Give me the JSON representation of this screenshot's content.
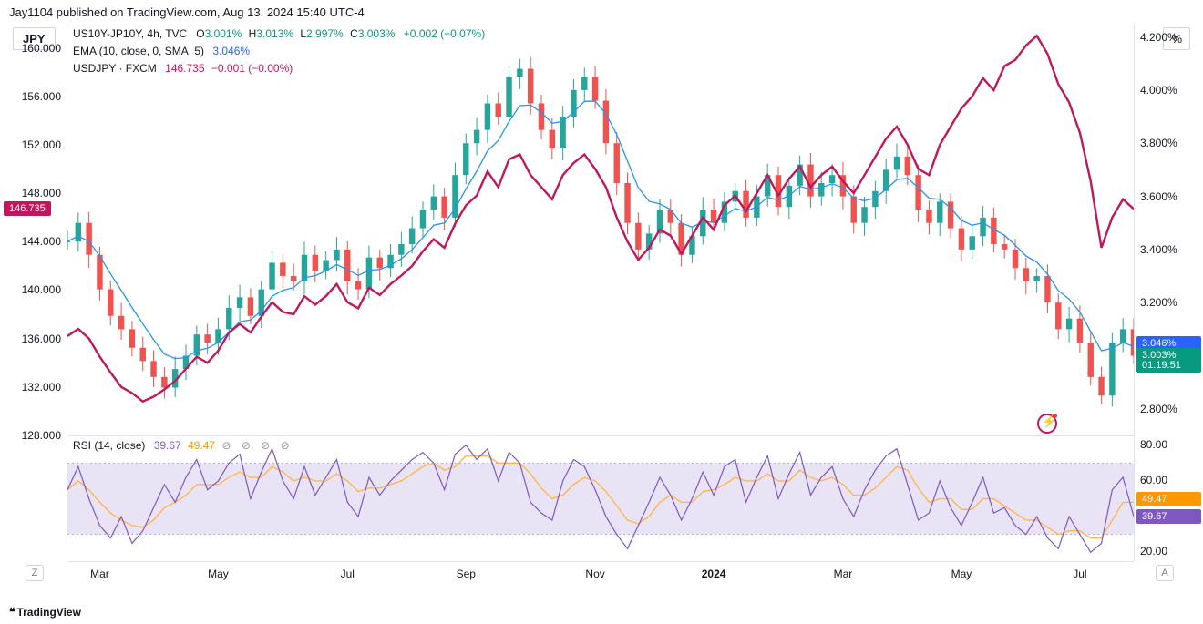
{
  "header": {
    "publish_text": "Jay1104 published on TradingView.com, Aug 13, 2024 15:40 UTC-4"
  },
  "badges": {
    "left_symbol": "JPY",
    "right_unit": "%"
  },
  "legend": {
    "main_symbol": "US10Y-JP10Y, 4h, TVC",
    "ohlc": {
      "O_label": "O",
      "O_val": "3.001%",
      "H_label": "H",
      "H_val": "3.013%",
      "L_label": "L",
      "L_val": "2.997%",
      "C_label": "C",
      "C_val": "3.003%",
      "chg": "+0.002 (+0.07%)"
    },
    "ema_label": "EMA (10, close, 0, SMA, 5)",
    "ema_val": "3.046%",
    "usdjpy_label": "USDJPY · FXCM",
    "usdjpy_val": "146.735",
    "usdjpy_chg": "−0.001 (−0.00%)"
  },
  "colors": {
    "teal": "#089981",
    "blue": "#2962ff",
    "red": "#f23645",
    "magenta": "#c2185b",
    "ema_line": "#2196f3",
    "candle_up": "#26a69a",
    "candle_down": "#ef5350",
    "rsi_line": "#7e57c2",
    "rsi_ma": "#ffb74d",
    "rsi_band_fill": "#e8e4f5",
    "grid": "#e0e3eb",
    "axis_text": "#131722"
  },
  "y_left": {
    "min": 128,
    "max": 162,
    "ticks": [
      160,
      156,
      152,
      148,
      144,
      140,
      136,
      132,
      128
    ],
    "labels": [
      "160.000",
      "156.000",
      "152.000",
      "148.000",
      "144.000",
      "140.000",
      "136.000",
      "132.000",
      "128.000"
    ]
  },
  "y_right": {
    "min": 2.7,
    "max": 4.25,
    "ticks": [
      4.2,
      4.0,
      3.8,
      3.6,
      3.4,
      3.2,
      2.8
    ],
    "labels": [
      "4.200%",
      "4.000%",
      "3.800%",
      "3.600%",
      "3.400%",
      "3.200%",
      "2.800%"
    ]
  },
  "price_tags": {
    "left_usdjpy": {
      "value": "146.735",
      "y_val_left": 146.735,
      "bg": "#c2185b"
    },
    "right_ema": {
      "value": "3.046%",
      "y_val_right": 3.046,
      "bg": "#2962ff"
    },
    "right_close": {
      "value": "3.003%",
      "y_val_right": 3.003,
      "bg": "#089981"
    },
    "right_timer": {
      "value": "01:19:51",
      "y_val_right": 2.965,
      "bg": "#089981"
    }
  },
  "x_axis": {
    "n": 100,
    "ticks_idx": [
      3,
      14,
      26,
      37,
      49,
      60,
      72,
      83,
      94
    ],
    "ticks_label": [
      "Mar",
      "May",
      "Jul",
      "Sep",
      "Nov",
      "2024",
      "Mar",
      "May",
      "Jul"
    ],
    "bold_idx": 60
  },
  "main_series_right": [
    3.43,
    3.5,
    3.38,
    3.25,
    3.15,
    3.1,
    3.03,
    2.98,
    2.92,
    2.88,
    2.95,
    3.0,
    3.08,
    3.05,
    3.1,
    3.18,
    3.22,
    3.15,
    3.25,
    3.35,
    3.3,
    3.28,
    3.38,
    3.32,
    3.36,
    3.4,
    3.28,
    3.25,
    3.37,
    3.33,
    3.38,
    3.42,
    3.48,
    3.55,
    3.6,
    3.52,
    3.68,
    3.8,
    3.85,
    3.95,
    3.9,
    4.05,
    4.08,
    3.95,
    3.85,
    3.78,
    3.9,
    4.0,
    4.05,
    3.96,
    3.8,
    3.65,
    3.5,
    3.4,
    3.46,
    3.55,
    3.5,
    3.38,
    3.45,
    3.55,
    3.5,
    3.58,
    3.62,
    3.52,
    3.6,
    3.68,
    3.56,
    3.64,
    3.72,
    3.6,
    3.65,
    3.68,
    3.6,
    3.5,
    3.56,
    3.62,
    3.7,
    3.75,
    3.68,
    3.55,
    3.5,
    3.58,
    3.48,
    3.4,
    3.45,
    3.52,
    3.42,
    3.4,
    3.33,
    3.28,
    3.3,
    3.2,
    3.1,
    3.14,
    3.05,
    2.92,
    2.85,
    3.05,
    3.1,
    3.0
  ],
  "usdjpy_series_left": [
    136.2,
    136.8,
    136.0,
    134.5,
    133.2,
    132.0,
    131.5,
    130.8,
    131.2,
    131.8,
    132.5,
    133.5,
    134.5,
    134.0,
    135.0,
    136.5,
    137.2,
    136.5,
    137.8,
    139.0,
    138.2,
    138.0,
    139.5,
    138.8,
    139.5,
    140.5,
    139.0,
    138.5,
    140.2,
    139.6,
    140.5,
    141.2,
    142.0,
    143.2,
    144.2,
    143.5,
    145.5,
    147.0,
    147.8,
    149.8,
    148.5,
    150.8,
    151.2,
    149.5,
    148.5,
    147.5,
    149.5,
    150.5,
    151.2,
    150.0,
    148.5,
    146.0,
    144.0,
    142.5,
    143.5,
    145.0,
    144.5,
    143.0,
    144.5,
    146.0,
    145.0,
    147.0,
    147.8,
    146.5,
    148.0,
    149.5,
    147.8,
    149.2,
    150.2,
    148.5,
    149.5,
    150.2,
    149.0,
    148.0,
    149.5,
    151.0,
    152.5,
    153.5,
    152.0,
    150.0,
    149.5,
    152.0,
    153.5,
    155.0,
    156.0,
    157.5,
    156.5,
    158.5,
    159.0,
    160.2,
    161.0,
    159.5,
    157.0,
    155.5,
    153.0,
    149.0,
    143.5,
    146.0,
    147.5,
    146.7
  ],
  "rsi": {
    "low_band": 30,
    "high_band": 70,
    "min": 15,
    "max": 85,
    "ticks": [
      80,
      60,
      20
    ],
    "labels": [
      "80.00",
      "60.00",
      "20.00"
    ],
    "value_tags": {
      "ma": {
        "value": "49.47",
        "y": 49.47,
        "bg": "#ff9800"
      },
      "rsi": {
        "value": "39.67",
        "y": 39.67,
        "bg": "#7e57c2"
      }
    },
    "legend_label": "RSI (14, close)",
    "legend_rsi_val": "39.67",
    "legend_ma_val": "49.47",
    "series": [
      55,
      68,
      50,
      35,
      28,
      40,
      25,
      32,
      45,
      58,
      48,
      62,
      72,
      55,
      60,
      70,
      75,
      50,
      65,
      78,
      60,
      50,
      68,
      52,
      62,
      72,
      48,
      40,
      62,
      52,
      60,
      66,
      72,
      76,
      70,
      55,
      75,
      80,
      72,
      78,
      60,
      76,
      70,
      48,
      42,
      38,
      60,
      72,
      68,
      55,
      40,
      30,
      22,
      35,
      48,
      62,
      52,
      38,
      50,
      65,
      52,
      68,
      72,
      48,
      62,
      74,
      50,
      64,
      76,
      52,
      62,
      68,
      50,
      40,
      55,
      66,
      74,
      78,
      58,
      38,
      42,
      60,
      45,
      35,
      48,
      62,
      42,
      45,
      35,
      30,
      40,
      28,
      22,
      40,
      30,
      20,
      25,
      55,
      62,
      40
    ],
    "ma_series": [
      55,
      60,
      55,
      48,
      42,
      38,
      35,
      34,
      38,
      45,
      48,
      52,
      58,
      58,
      58,
      62,
      65,
      62,
      62,
      68,
      65,
      60,
      62,
      60,
      60,
      64,
      60,
      54,
      56,
      56,
      58,
      60,
      64,
      68,
      70,
      66,
      68,
      74,
      74,
      74,
      70,
      70,
      70,
      64,
      56,
      50,
      52,
      58,
      62,
      60,
      54,
      46,
      38,
      36,
      40,
      48,
      52,
      48,
      48,
      54,
      55,
      58,
      62,
      60,
      60,
      64,
      60,
      60,
      66,
      62,
      60,
      62,
      58,
      52,
      52,
      56,
      62,
      68,
      66,
      56,
      48,
      50,
      50,
      44,
      44,
      50,
      50,
      46,
      42,
      38,
      38,
      34,
      30,
      32,
      32,
      28,
      28,
      38,
      48,
      48
    ]
  },
  "footer": {
    "brand": "TradingView"
  },
  "corner": {
    "z": "Z",
    "a": "A"
  }
}
